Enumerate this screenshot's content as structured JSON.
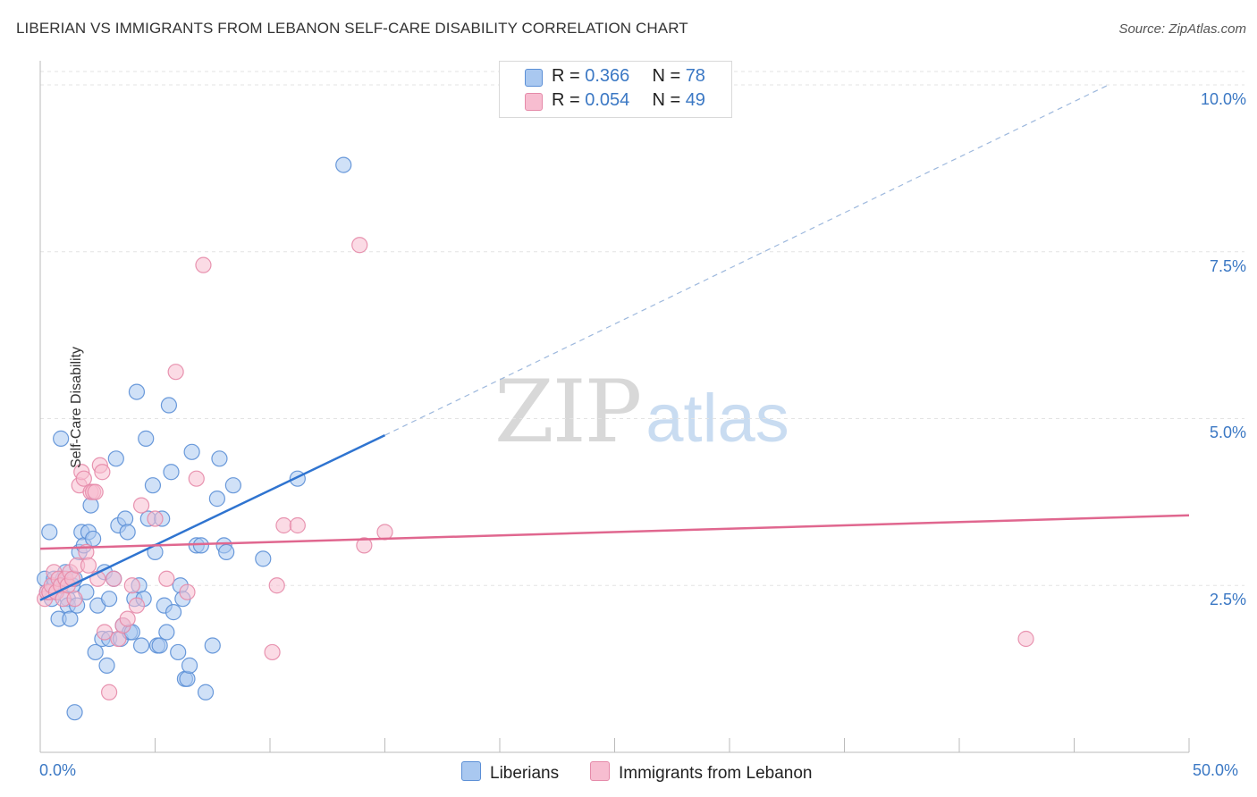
{
  "title": "LIBERIAN VS IMMIGRANTS FROM LEBANON SELF-CARE DISABILITY CORRELATION CHART",
  "source": "Source: ZipAtlas.com",
  "watermark": {
    "zip": "ZIP",
    "atlas": "atlas"
  },
  "colors": {
    "blue_fill": "#a9c8f0",
    "blue_stroke": "#5b8fd6",
    "blue_line": "#2f74d0",
    "pink_fill": "#f7bdd0",
    "pink_stroke": "#e58aa9",
    "pink_line": "#e0678f",
    "tick_text": "#3b78c4",
    "grid": "#e3e3e3"
  },
  "legend_top": {
    "rows": [
      {
        "r_label": "R = ",
        "r_value": "0.366",
        "n_label": "N = ",
        "n_value": "78"
      },
      {
        "r_label": "R = ",
        "r_value": "0.054",
        "n_label": "N = ",
        "n_value": "49"
      }
    ]
  },
  "legend_bottom": [
    "Liberians",
    "Immigrants from Lebanon"
  ],
  "chart_data": {
    "type": "scatter",
    "title": "LIBERIAN VS IMMIGRANTS FROM LEBANON SELF-CARE DISABILITY CORRELATION CHART",
    "xlabel": "",
    "ylabel": "Self-Care Disability",
    "xlim": [
      0,
      50
    ],
    "ylim": [
      0,
      10.2
    ],
    "x_tick_labels": [
      "0.0%",
      "50.0%"
    ],
    "y_ticks": [
      2.5,
      5.0,
      7.5,
      10.0
    ],
    "y_tick_labels": [
      "2.5%",
      "5.0%",
      "7.5%",
      "10.0%"
    ],
    "grid": true,
    "series": [
      {
        "name": "Liberians",
        "R": 0.366,
        "N": 78,
        "trend": {
          "x0": 0,
          "y0": 2.28,
          "x1": 15,
          "y1": 4.75,
          "dashed_to_x": 46.5,
          "dashed_to_y": 10.0
        },
        "points": [
          [
            0.2,
            2.6
          ],
          [
            0.3,
            2.4
          ],
          [
            0.4,
            3.3
          ],
          [
            0.5,
            2.3
          ],
          [
            0.6,
            2.5
          ],
          [
            0.6,
            2.6
          ],
          [
            0.7,
            2.4
          ],
          [
            0.8,
            2.0
          ],
          [
            0.9,
            2.5
          ],
          [
            1.0,
            2.6
          ],
          [
            1.1,
            2.7
          ],
          [
            1.2,
            2.3
          ],
          [
            1.2,
            2.2
          ],
          [
            1.3,
            2.0
          ],
          [
            1.4,
            2.5
          ],
          [
            1.5,
            2.6
          ],
          [
            1.6,
            2.2
          ],
          [
            1.7,
            3.0
          ],
          [
            1.8,
            3.3
          ],
          [
            1.9,
            3.1
          ],
          [
            2.0,
            2.4
          ],
          [
            2.1,
            3.3
          ],
          [
            2.2,
            3.7
          ],
          [
            2.3,
            3.2
          ],
          [
            2.4,
            1.5
          ],
          [
            2.5,
            2.2
          ],
          [
            2.7,
            1.7
          ],
          [
            2.8,
            2.7
          ],
          [
            2.9,
            1.3
          ],
          [
            3.0,
            1.7
          ],
          [
            3.2,
            2.6
          ],
          [
            3.3,
            4.4
          ],
          [
            3.4,
            3.4
          ],
          [
            3.5,
            1.7
          ],
          [
            3.6,
            1.9
          ],
          [
            3.7,
            3.5
          ],
          [
            3.8,
            3.3
          ],
          [
            3.9,
            1.8
          ],
          [
            4.0,
            1.8
          ],
          [
            4.1,
            2.3
          ],
          [
            4.2,
            5.4
          ],
          [
            4.3,
            2.5
          ],
          [
            4.4,
            1.6
          ],
          [
            4.5,
            2.3
          ],
          [
            4.6,
            4.7
          ],
          [
            4.7,
            3.5
          ],
          [
            4.9,
            4.0
          ],
          [
            5.0,
            3.0
          ],
          [
            5.1,
            1.6
          ],
          [
            5.2,
            1.6
          ],
          [
            5.3,
            3.5
          ],
          [
            5.4,
            2.2
          ],
          [
            5.5,
            1.8
          ],
          [
            5.6,
            5.2
          ],
          [
            5.7,
            4.2
          ],
          [
            5.8,
            2.1
          ],
          [
            6.0,
            1.5
          ],
          [
            6.1,
            2.5
          ],
          [
            6.2,
            2.3
          ],
          [
            6.3,
            1.1
          ],
          [
            6.4,
            1.1
          ],
          [
            6.5,
            1.3
          ],
          [
            6.6,
            4.5
          ],
          [
            6.8,
            3.1
          ],
          [
            7.0,
            3.1
          ],
          [
            7.2,
            0.9
          ],
          [
            7.5,
            1.6
          ],
          [
            7.7,
            3.8
          ],
          [
            7.8,
            4.4
          ],
          [
            8.0,
            3.1
          ],
          [
            8.1,
            3.0
          ],
          [
            8.4,
            4.0
          ],
          [
            9.7,
            2.9
          ],
          [
            11.2,
            4.1
          ],
          [
            13.2,
            8.8
          ],
          [
            1.5,
            0.6
          ],
          [
            0.9,
            4.7
          ],
          [
            3.0,
            2.3
          ]
        ]
      },
      {
        "name": "Immigrants from Lebanon",
        "R": 0.054,
        "N": 49,
        "trend": {
          "x0": 0,
          "y0": 3.05,
          "x1": 50,
          "y1": 3.55
        },
        "points": [
          [
            0.2,
            2.3
          ],
          [
            0.3,
            2.4
          ],
          [
            0.4,
            2.4
          ],
          [
            0.5,
            2.5
          ],
          [
            0.6,
            2.7
          ],
          [
            0.7,
            2.4
          ],
          [
            0.8,
            2.6
          ],
          [
            0.9,
            2.5
          ],
          [
            1.0,
            2.3
          ],
          [
            1.1,
            2.6
          ],
          [
            1.2,
            2.5
          ],
          [
            1.3,
            2.7
          ],
          [
            1.4,
            2.6
          ],
          [
            1.5,
            2.3
          ],
          [
            1.6,
            2.8
          ],
          [
            1.7,
            4.0
          ],
          [
            1.8,
            4.2
          ],
          [
            1.9,
            4.1
          ],
          [
            2.0,
            3.0
          ],
          [
            2.1,
            2.8
          ],
          [
            2.2,
            3.9
          ],
          [
            2.3,
            3.9
          ],
          [
            2.4,
            3.9
          ],
          [
            2.5,
            2.6
          ],
          [
            2.6,
            4.3
          ],
          [
            2.7,
            4.2
          ],
          [
            2.8,
            1.8
          ],
          [
            3.0,
            0.9
          ],
          [
            3.2,
            2.6
          ],
          [
            3.4,
            1.7
          ],
          [
            3.6,
            1.9
          ],
          [
            3.8,
            2.0
          ],
          [
            4.0,
            2.5
          ],
          [
            4.2,
            2.2
          ],
          [
            4.4,
            3.7
          ],
          [
            5.0,
            3.5
          ],
          [
            5.5,
            2.6
          ],
          [
            5.9,
            5.7
          ],
          [
            6.4,
            2.4
          ],
          [
            6.8,
            4.1
          ],
          [
            7.1,
            7.3
          ],
          [
            10.1,
            1.5
          ],
          [
            10.3,
            2.5
          ],
          [
            10.6,
            3.4
          ],
          [
            11.2,
            3.4
          ],
          [
            13.9,
            7.6
          ],
          [
            14.1,
            3.1
          ],
          [
            15.0,
            3.3
          ],
          [
            42.9,
            1.7
          ]
        ]
      }
    ]
  }
}
